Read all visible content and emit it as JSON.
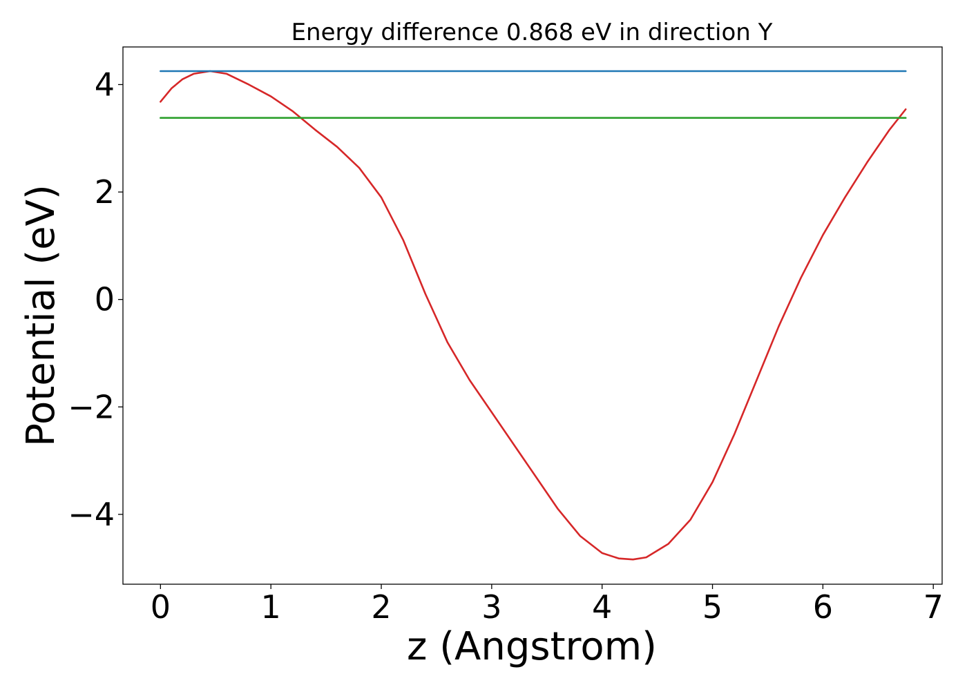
{
  "chart_data": {
    "type": "line",
    "title": "Energy difference 0.868 eV in direction Y",
    "xlabel": "z (Angstrom)",
    "ylabel": "Potential (eV)",
    "xlim": [
      -0.34,
      7.08
    ],
    "ylim": [
      -5.3,
      4.7
    ],
    "xticks": [
      0,
      1,
      2,
      3,
      4,
      5,
      6,
      7
    ],
    "xtick_labels": [
      "0",
      "1",
      "2",
      "3",
      "4",
      "5",
      "6",
      "7"
    ],
    "yticks": [
      -4,
      -2,
      0,
      2,
      4
    ],
    "ytick_labels": [
      "−4",
      "−2",
      "0",
      "2",
      "4"
    ],
    "grid": false,
    "legend": "none",
    "series": [
      {
        "color": "#d62728",
        "x": [
          0.0,
          0.1,
          0.2,
          0.3,
          0.45,
          0.6,
          0.8,
          1.0,
          1.2,
          1.4,
          1.6,
          1.8,
          2.0,
          2.2,
          2.4,
          2.6,
          2.8,
          3.0,
          3.2,
          3.4,
          3.6,
          3.8,
          4.0,
          4.15,
          4.28,
          4.4,
          4.6,
          4.8,
          5.0,
          5.2,
          5.4,
          5.6,
          5.8,
          6.0,
          6.2,
          6.4,
          6.6,
          6.75
        ],
        "y": [
          3.68,
          3.93,
          4.1,
          4.2,
          4.25,
          4.2,
          4.0,
          3.78,
          3.5,
          3.16,
          2.84,
          2.45,
          1.9,
          1.1,
          0.1,
          -0.8,
          -1.5,
          -2.1,
          -2.7,
          -3.3,
          -3.9,
          -4.4,
          -4.72,
          -4.82,
          -4.84,
          -4.8,
          -4.55,
          -4.1,
          -3.4,
          -2.5,
          -1.5,
          -0.5,
          0.4,
          1.2,
          1.9,
          2.55,
          3.15,
          3.54
        ]
      },
      {
        "color": "#1f77b4",
        "x": [
          0.0,
          6.75
        ],
        "y": [
          4.25,
          4.25
        ]
      },
      {
        "color": "#2ca02c",
        "x": [
          0.0,
          6.75
        ],
        "y": [
          3.38,
          3.38
        ]
      }
    ]
  }
}
